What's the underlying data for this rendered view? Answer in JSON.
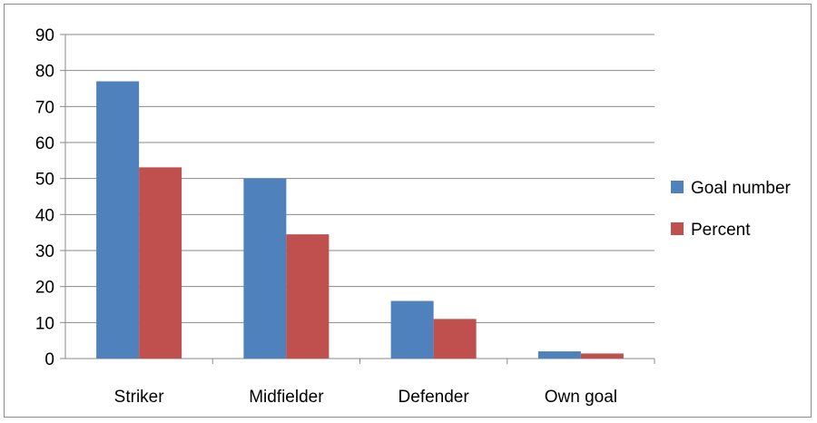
{
  "chart_data": {
    "type": "bar",
    "categories": [
      "Striker",
      "Midfielder",
      "Defender",
      "Own goal"
    ],
    "series": [
      {
        "name": "Goal number",
        "values": [
          77,
          50,
          16,
          2
        ],
        "color": "#4F81BD"
      },
      {
        "name": "Percent",
        "values": [
          53.1,
          34.5,
          11,
          1.4
        ],
        "color": "#C0504D"
      }
    ],
    "ylim": [
      0,
      90
    ],
    "yticks": [
      "0",
      "10",
      "20",
      "30",
      "40",
      "50",
      "60",
      "70",
      "80",
      "90"
    ],
    "grid": true,
    "legend": "right",
    "title": "",
    "xlabel": "",
    "ylabel": ""
  }
}
